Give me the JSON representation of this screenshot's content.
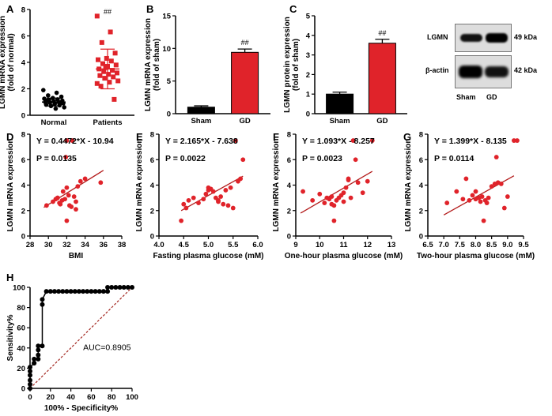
{
  "colors": {
    "red": "#e0232a",
    "black": "#000000",
    "line": "#b31b1b",
    "roc": "#000000",
    "diag": "#a3261f"
  },
  "chart_data": [
    {
      "id": "A",
      "panel_label": "A",
      "type": "scatter",
      "ylabel_lines": [
        "LGMN mRNA expression",
        "(fold of normal)"
      ],
      "ylim": [
        0,
        8
      ],
      "yticks": [
        0,
        2,
        4,
        6,
        8
      ],
      "categories": [
        "Normal",
        "Patients"
      ],
      "annotation": "##",
      "series": [
        {
          "name": "Normal",
          "color": "#000000",
          "marker": "circle",
          "mean": 1.0,
          "sd": 0.3,
          "values": [
            1.9,
            1.7,
            1.5,
            1.4,
            1.3,
            1.25,
            1.2,
            1.15,
            1.1,
            1.05,
            1.0,
            1.0,
            0.95,
            0.9,
            0.85,
            0.8,
            0.75,
            0.7,
            0.6,
            0.5,
            1.1,
            0.9
          ]
        },
        {
          "name": "Patients",
          "color": "#e0232a",
          "marker": "square",
          "mean": 3.5,
          "sd": 1.5,
          "values": [
            7.5,
            6.3,
            5.5,
            4.7,
            4.3,
            4.2,
            4.1,
            3.9,
            3.8,
            3.7,
            3.5,
            3.4,
            3.3,
            3.2,
            3.1,
            3.0,
            2.9,
            2.8,
            2.6,
            2.5,
            2.2,
            1.2,
            3.6,
            2.4
          ]
        }
      ]
    },
    {
      "id": "B",
      "panel_label": "B",
      "type": "bar",
      "ylabel_lines": [
        "LGMN mRNA expression",
        "(fold of sham)"
      ],
      "ylim": [
        0,
        15
      ],
      "yticks": [
        0,
        5,
        10,
        15
      ],
      "categories": [
        "Sham",
        "GD"
      ],
      "annotation": "##",
      "values": [
        1.0,
        9.4
      ],
      "errors": [
        0.2,
        0.5
      ],
      "bar_colors": [
        "#000000",
        "#e0232a"
      ]
    },
    {
      "id": "C",
      "panel_label": "C",
      "type": "bar",
      "ylabel_lines": [
        "LGMN protein expression",
        "(fold of sham)"
      ],
      "ylim": [
        0,
        5
      ],
      "yticks": [
        0,
        1,
        2,
        3,
        4,
        5
      ],
      "categories": [
        "Sham",
        "GD"
      ],
      "annotation": "##",
      "values": [
        1.0,
        3.6
      ],
      "errors": [
        0.1,
        0.2
      ],
      "bar_colors": [
        "#000000",
        "#e0232a"
      ]
    },
    {
      "id": "D",
      "panel_label": "D",
      "type": "scatter",
      "ylabel": "LGMN mRNA expression",
      "xlabel": "BMI",
      "xlim": [
        28,
        38
      ],
      "ylim": [
        0,
        8
      ],
      "xticks": [
        28,
        30,
        32,
        34,
        36,
        38
      ],
      "yticks": [
        0,
        2,
        4,
        6,
        8
      ],
      "equation": "Y = 0.4472*X - 10.94",
      "pvalue": "P = 0.0135",
      "fit": [
        0.4472,
        -10.94
      ],
      "fit_range": [
        29.5,
        36
      ],
      "x": [
        29.8,
        30.5,
        30.8,
        31.0,
        31.2,
        31.3,
        31.5,
        31.6,
        31.8,
        31.9,
        32.0,
        32.0,
        32.2,
        32.3,
        32.5,
        32.6,
        32.8,
        33.0,
        33.0,
        33.2,
        33.5,
        34.0,
        35.7,
        32.0,
        31.0
      ],
      "y": [
        2.4,
        2.7,
        2.9,
        3.0,
        2.6,
        2.5,
        2.8,
        3.5,
        2.9,
        6.2,
        7.5,
        3.8,
        3.2,
        2.4,
        2.3,
        7.5,
        3.1,
        2.7,
        2.1,
        3.9,
        4.3,
        4.5,
        4.2,
        1.2,
        3.0
      ]
    },
    {
      "id": "E",
      "panel_label": "E",
      "type": "scatter",
      "ylabel": "LGMN mRNA expression",
      "xlabel": "Fasting plasma glucose (mM)",
      "xlim": [
        4.0,
        6.0
      ],
      "ylim": [
        0,
        8
      ],
      "xticks": [
        4.0,
        4.5,
        5.0,
        5.5,
        6.0
      ],
      "yticks": [
        0,
        2,
        4,
        6,
        8
      ],
      "equation": "Y = 2.165*X - 7.638",
      "pvalue": "P = 0.0022",
      "fit": [
        2.165,
        -7.638
      ],
      "fit_range": [
        4.45,
        5.7
      ],
      "x": [
        4.45,
        4.5,
        4.6,
        4.7,
        4.8,
        4.9,
        4.95,
        5.0,
        5.0,
        5.05,
        5.1,
        5.15,
        5.2,
        5.2,
        5.25,
        5.3,
        5.35,
        5.4,
        5.45,
        5.5,
        5.55,
        5.6,
        5.65,
        5.7,
        4.55
      ],
      "y": [
        1.2,
        2.5,
        2.8,
        3.0,
        2.6,
        2.9,
        3.3,
        3.6,
        3.8,
        3.7,
        3.5,
        3.0,
        2.7,
        2.8,
        3.1,
        2.5,
        3.6,
        2.4,
        3.8,
        2.2,
        7.5,
        4.3,
        4.5,
        6.0,
        2.2
      ]
    },
    {
      "id": "F",
      "panel_label": "F",
      "type": "scatter",
      "ylabel": "LGMN mRNA expression",
      "xlabel": "One-hour plasma glucose (mM)",
      "xlim": [
        9,
        13
      ],
      "ylim": [
        0,
        8
      ],
      "xticks": [
        9,
        10,
        11,
        12,
        13
      ],
      "yticks": [
        0,
        2,
        4,
        6,
        8
      ],
      "equation": "Y = 1.093*X - 8.257",
      "pvalue": "P = 0.0023",
      "fit": [
        1.093,
        -8.257
      ],
      "fit_range": [
        9.2,
        12.2
      ],
      "x": [
        9.3,
        9.7,
        10.0,
        10.2,
        10.3,
        10.4,
        10.5,
        10.5,
        10.6,
        10.7,
        10.8,
        10.9,
        11.0,
        11.0,
        11.1,
        11.2,
        11.3,
        11.4,
        11.5,
        11.6,
        11.8,
        12.0,
        12.2,
        11.2,
        10.6
      ],
      "y": [
        3.5,
        2.8,
        3.3,
        2.6,
        3.0,
        2.9,
        3.1,
        2.5,
        2.4,
        2.8,
        3.0,
        3.2,
        2.7,
        3.4,
        3.8,
        4.5,
        3.0,
        7.5,
        6.0,
        4.2,
        3.4,
        4.3,
        7.5,
        4.4,
        1.2
      ]
    },
    {
      "id": "G",
      "panel_label": "G",
      "type": "scatter",
      "ylabel": "LGMN mRNA expression",
      "xlabel": "Two-hour plasma glucose (mM)",
      "xlim": [
        6.5,
        9.5
      ],
      "ylim": [
        0,
        8
      ],
      "xticks": [
        6.5,
        7.0,
        7.5,
        8.0,
        8.5,
        9.0,
        9.5
      ],
      "yticks": [
        0,
        2,
        4,
        6,
        8
      ],
      "equation": "Y = 1.399*X - 8.135",
      "pvalue": "P = 0.0114",
      "fit": [
        1.399,
        -8.135
      ],
      "fit_range": [
        7.0,
        9.2
      ],
      "x": [
        7.1,
        7.4,
        7.6,
        7.7,
        7.8,
        7.9,
        8.0,
        8.0,
        8.1,
        8.15,
        8.2,
        8.3,
        8.35,
        8.4,
        8.5,
        8.6,
        8.65,
        8.7,
        8.8,
        8.9,
        9.0,
        9.2,
        9.3,
        8.25
      ],
      "y": [
        2.6,
        3.5,
        2.9,
        4.5,
        2.8,
        3.2,
        2.9,
        3.5,
        3.0,
        2.7,
        3.1,
        2.8,
        2.6,
        3.0,
        3.9,
        4.1,
        6.2,
        4.2,
        4.1,
        2.2,
        3.1,
        7.5,
        7.5,
        1.2
      ]
    },
    {
      "id": "H",
      "panel_label": "H",
      "type": "line",
      "ylabel": "Sensitivity%",
      "xlabel": "100% - Specificity%",
      "xlim": [
        0,
        100
      ],
      "ylim": [
        0,
        100
      ],
      "xticks": [
        0,
        20,
        40,
        60,
        80,
        100
      ],
      "yticks": [
        0,
        20,
        40,
        60,
        80,
        100
      ],
      "annotation": "AUC=0.8905",
      "x": [
        0,
        0,
        0,
        0,
        0,
        0,
        4,
        4,
        4,
        8,
        8,
        8,
        8,
        12,
        12,
        12,
        16,
        20,
        24,
        28,
        32,
        36,
        40,
        44,
        48,
        52,
        56,
        60,
        64,
        68,
        72,
        76,
        76,
        80,
        84,
        88,
        92,
        96,
        100
      ],
      "y": [
        0,
        4,
        8,
        13,
        17,
        21,
        25,
        25,
        29,
        29,
        33,
        38,
        42,
        42,
        83,
        88,
        96,
        96,
        96,
        96,
        96,
        96,
        96,
        96,
        96,
        96,
        96,
        96,
        96,
        96,
        96,
        96,
        100,
        100,
        100,
        100,
        100,
        100,
        100
      ]
    }
  ],
  "blot": {
    "proteins": [
      "LGMN",
      "β-actin"
    ],
    "weights": [
      "49 kDa",
      "42 kDa"
    ],
    "lanes": [
      "Sham",
      "GD"
    ]
  }
}
